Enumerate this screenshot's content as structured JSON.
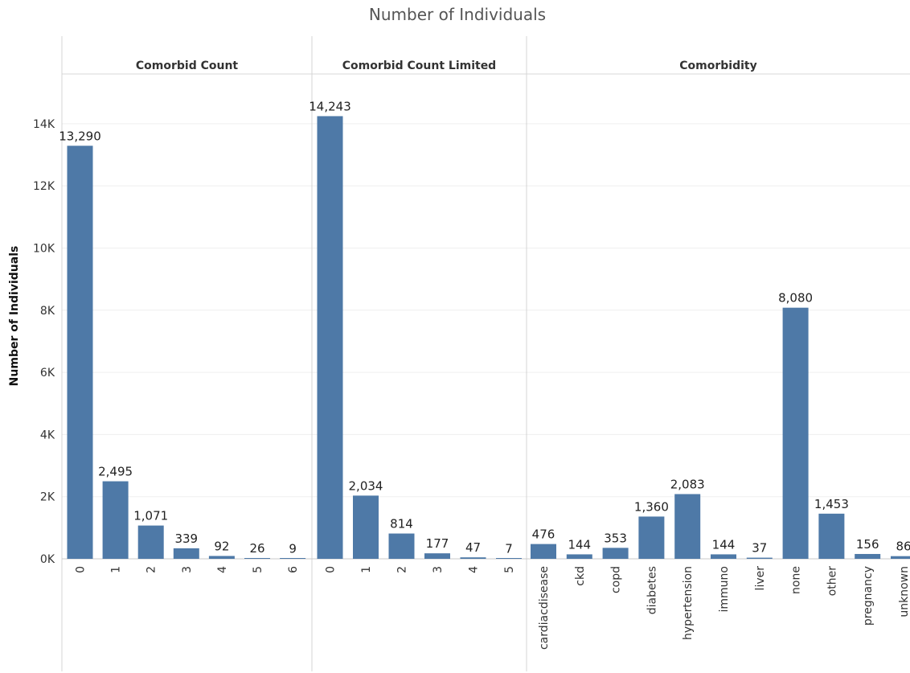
{
  "chart_data": {
    "type": "bar",
    "title": "Number of Individuals",
    "ylabel": "Number of Individuals",
    "ylim": [
      0,
      15600
    ],
    "yticks": [
      {
        "value": 0,
        "label": "0K"
      },
      {
        "value": 2000,
        "label": "2K"
      },
      {
        "value": 4000,
        "label": "4K"
      },
      {
        "value": 6000,
        "label": "6K"
      },
      {
        "value": 8000,
        "label": "8K"
      },
      {
        "value": 10000,
        "label": "10K"
      },
      {
        "value": 12000,
        "label": "12K"
      },
      {
        "value": 14000,
        "label": "14K"
      }
    ],
    "grid": true,
    "bar_color": "#4e79a7",
    "panels": [
      {
        "name": "Comorbid Count",
        "categories": [
          "0",
          "1",
          "2",
          "3",
          "4",
          "5",
          "6"
        ],
        "values": [
          13290,
          2495,
          1071,
          339,
          92,
          26,
          9
        ],
        "value_labels": [
          "13,290",
          "2,495",
          "1,071",
          "339",
          "92",
          "26",
          "9"
        ]
      },
      {
        "name": "Comorbid Count Limited",
        "categories": [
          "0",
          "1",
          "2",
          "3",
          "4",
          "5"
        ],
        "values": [
          14243,
          2034,
          814,
          177,
          47,
          7
        ],
        "value_labels": [
          "14,243",
          "2,034",
          "814",
          "177",
          "47",
          "7"
        ]
      },
      {
        "name": "Comorbidity",
        "categories": [
          "cardiacdisease",
          "ckd",
          "copd",
          "diabetes",
          "hypertension",
          "immuno",
          "liver",
          "none",
          "other",
          "pregnancy",
          "unknown"
        ],
        "values": [
          476,
          144,
          353,
          1360,
          2083,
          144,
          37,
          8080,
          1453,
          156,
          86
        ],
        "value_labels": [
          "476",
          "144",
          "353",
          "1,360",
          "2,083",
          "144",
          "37",
          "8,080",
          "1,453",
          "156",
          "86"
        ]
      }
    ]
  }
}
